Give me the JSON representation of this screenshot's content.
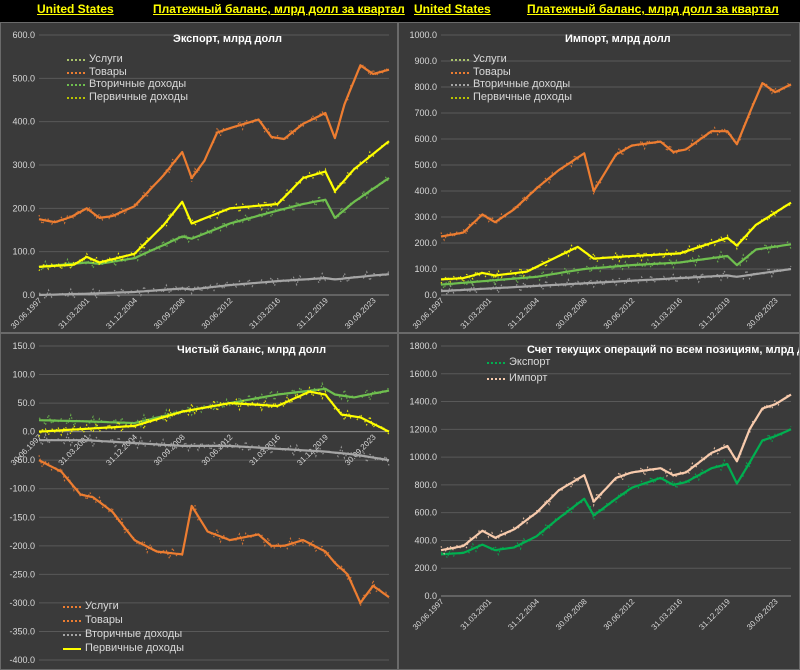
{
  "header": {
    "left_country": "United States",
    "left_title": "Платежный баланс, млрд долл за квартал",
    "right_country": "United States",
    "right_title": "Платежный баланс, млрд долл за квартал"
  },
  "chart_data": [
    {
      "type": "line",
      "title": "Экспорт, млрд долл",
      "ylim": [
        0,
        600
      ],
      "y_ticks": [
        "0.0",
        "100.0",
        "200.0",
        "300.0",
        "400.0",
        "500.0",
        "600.0"
      ],
      "x_ticks": [
        "30.06.1997",
        "31.03.2001",
        "31.12.2004",
        "30.09.2008",
        "30.06.2012",
        "31.03.2016",
        "31.12.2019",
        "30.09.2023"
      ],
      "x_range": [
        1997.25,
        2024.75
      ],
      "legend_position": "top-left",
      "grid": true,
      "series": [
        {
          "name": "Услуги",
          "color": "#a5a5a5",
          "x": [
            1997.25,
            2001,
            2004.75,
            2008.5,
            2009.25,
            2012.25,
            2016,
            2019.75,
            2020.5,
            2023.5,
            2024.75
          ],
          "values": [
            0,
            3,
            7,
            15,
            13,
            23,
            32,
            39,
            36,
            45,
            48
          ]
        },
        {
          "name": "Товары",
          "color": "#ed7d31",
          "x": [
            1997.25,
            1998.5,
            1999.75,
            2001,
            2002,
            2003,
            2004.75,
            2007,
            2008.5,
            2009.25,
            2010.25,
            2011.25,
            2012.25,
            2014.5,
            2015.5,
            2016.5,
            2018,
            2019.75,
            2020.5,
            2021.25,
            2022.5,
            2023.5,
            2024.75
          ],
          "values": [
            175,
            168,
            180,
            200,
            178,
            182,
            205,
            275,
            330,
            270,
            310,
            375,
            385,
            405,
            365,
            360,
            395,
            420,
            362,
            440,
            530,
            510,
            520
          ]
        },
        {
          "name": "Вторичные доходы",
          "color": "#6fbf4f",
          "x": [
            1997.25,
            2001,
            2002,
            2004.75,
            2008.5,
            2009.25,
            2012.25,
            2016,
            2018,
            2019.75,
            2020.5,
            2022,
            2024.75
          ],
          "values": [
            65,
            75,
            72,
            85,
            135,
            130,
            165,
            195,
            210,
            220,
            178,
            215,
            270
          ]
        },
        {
          "name": "Первичные доходы",
          "color": "#ffff00",
          "x": [
            1997.25,
            2000,
            2001,
            2002,
            2004.75,
            2007,
            2008.5,
            2009.25,
            2012.25,
            2016,
            2018,
            2019.75,
            2020.5,
            2022,
            2024.75
          ],
          "values": [
            65,
            70,
            88,
            75,
            95,
            160,
            215,
            165,
            200,
            210,
            270,
            285,
            240,
            290,
            355
          ]
        }
      ]
    },
    {
      "type": "line",
      "title": "Импорт, млрд долл",
      "ylim": [
        0,
        1000
      ],
      "y_ticks": [
        "0.0",
        "100.0",
        "200.0",
        "300.0",
        "400.0",
        "500.0",
        "600.0",
        "700.0",
        "800.0",
        "900.0",
        "1000.0"
      ],
      "x_ticks": [
        "30.06.1997",
        "31.03.2001",
        "31.12.2004",
        "30.09.2008",
        "30.06.2012",
        "31.03.2016",
        "31.12.2019",
        "30.09.2023"
      ],
      "x_range": [
        1997.25,
        2024.75
      ],
      "legend_position": "top-left",
      "grid": true,
      "series": [
        {
          "name": "Услуги",
          "color": "#a5a5a5",
          "x": [
            1997.25,
            2001,
            2004.75,
            2008.5,
            2012.25,
            2016,
            2019.75,
            2020.5,
            2024.75
          ],
          "values": [
            15,
            25,
            35,
            45,
            55,
            65,
            75,
            70,
            100
          ]
        },
        {
          "name": "Товары",
          "color": "#ed7d31",
          "x": [
            1997.25,
            1999,
            2000.5,
            2001.5,
            2003,
            2004.75,
            2006.5,
            2008.5,
            2009.25,
            2011,
            2012.25,
            2014.5,
            2015.5,
            2016.5,
            2018.5,
            2019.75,
            2020.5,
            2021.5,
            2022.5,
            2023.5,
            2024.75
          ],
          "values": [
            225,
            240,
            310,
            280,
            330,
            410,
            480,
            545,
            400,
            540,
            575,
            590,
            550,
            560,
            630,
            630,
            580,
            700,
            815,
            780,
            810
          ]
        },
        {
          "name": "Вторичные доходы",
          "color": "#6fbf4f",
          "x": [
            1997.25,
            2001,
            2004.75,
            2008.5,
            2012.25,
            2016,
            2019.75,
            2020.5,
            2022,
            2024.75
          ],
          "values": [
            40,
            55,
            70,
            100,
            115,
            125,
            150,
            115,
            175,
            195
          ]
        },
        {
          "name": "Первичные доходы",
          "color": "#ffff00",
          "x": [
            1997.25,
            1999,
            2000.5,
            2001.5,
            2004,
            2006.5,
            2008,
            2009.25,
            2012.25,
            2016,
            2018.5,
            2019.75,
            2020.5,
            2022,
            2024.75
          ],
          "values": [
            60,
            65,
            85,
            75,
            90,
            150,
            185,
            140,
            150,
            160,
            200,
            220,
            190,
            270,
            355
          ]
        }
      ]
    },
    {
      "type": "line",
      "title": "Чистый баланс, млрд долл",
      "ylim": [
        -400,
        150
      ],
      "y_ticks": [
        "-400.0",
        "-350.0",
        "-300.0",
        "-250.0",
        "-200.0",
        "-150.0",
        "-100.0",
        "-50.0",
        "0.0",
        "50.0",
        "100.0",
        "150.0"
      ],
      "x_ticks": [
        "30.06.1997",
        "31.03.2001",
        "31.12.2004",
        "30.09.2008",
        "30.06.2012",
        "31.03.2016",
        "31.12.2019",
        "30.09.2023"
      ],
      "x_range": [
        1997.25,
        2024.75
      ],
      "legend_position": "bottom-left",
      "grid": true,
      "series": [
        {
          "name": "Услуги",
          "color": "#6fbf4f",
          "x": [
            1997.25,
            2001,
            2004.75,
            2008.5,
            2012.25,
            2016,
            2019.75,
            2020.5,
            2022,
            2024.75
          ],
          "values": [
            20,
            18,
            15,
            35,
            50,
            65,
            75,
            65,
            60,
            72
          ]
        },
        {
          "name": "Товары",
          "color": "#ed7d31",
          "x": [
            1997.25,
            1999,
            2000.5,
            2001.5,
            2003,
            2004.75,
            2006.5,
            2008.5,
            2009.25,
            2010.5,
            2012.25,
            2014.5,
            2015.5,
            2016.5,
            2018,
            2019.75,
            2020.5,
            2021.5,
            2022.5,
            2023.5,
            2024.75
          ],
          "values": [
            -50,
            -70,
            -110,
            -115,
            -140,
            -190,
            -210,
            -215,
            -130,
            -175,
            -190,
            -180,
            -200,
            -200,
            -190,
            -210,
            -230,
            -250,
            -300,
            -270,
            -290
          ]
        },
        {
          "name": "Вторичные доходы",
          "color": "#a5a5a5",
          "x": [
            1997.25,
            2001,
            2004.75,
            2008.5,
            2012.25,
            2016,
            2019.75,
            2022,
            2024.75
          ],
          "values": [
            -15,
            -15,
            -20,
            -25,
            -25,
            -30,
            -35,
            -40,
            -50
          ]
        },
        {
          "name": "Первичные доходы",
          "color": "#ffff00",
          "x": [
            1997.25,
            2001,
            2004.75,
            2008.5,
            2012.25,
            2016,
            2018.5,
            2019.75,
            2021,
            2022.5,
            2024.75
          ],
          "values": [
            0,
            5,
            10,
            35,
            50,
            45,
            70,
            65,
            30,
            25,
            0
          ]
        }
      ]
    },
    {
      "type": "line",
      "title": "Счет текущих операций по всем позициям, млрд долл",
      "ylim": [
        0,
        1800
      ],
      "y_ticks": [
        "0.0",
        "200.0",
        "400.0",
        "600.0",
        "800.0",
        "1000.0",
        "1200.0",
        "1400.0",
        "1600.0",
        "1800.0"
      ],
      "x_ticks": [
        "30.06.1997",
        "31.03.2001",
        "31.12.2004",
        "30.09.2008",
        "30.06.2012",
        "31.03.2016",
        "31.12.2019",
        "30.09.2023"
      ],
      "x_range": [
        1997.25,
        2024.75
      ],
      "legend_position": "top-left",
      "grid": true,
      "series": [
        {
          "name": "Экспорт",
          "color": "#00b050",
          "x": [
            1997.25,
            1999,
            2000.5,
            2001.5,
            2003,
            2004.75,
            2006.5,
            2008.5,
            2009.25,
            2011,
            2012.25,
            2014.5,
            2015.5,
            2016.5,
            2018.5,
            2019.75,
            2020.5,
            2021.5,
            2022.5,
            2023.5,
            2024.75
          ],
          "values": [
            300,
            310,
            370,
            330,
            350,
            430,
            560,
            700,
            580,
            700,
            780,
            850,
            800,
            820,
            920,
            950,
            810,
            960,
            1120,
            1150,
            1200
          ]
        },
        {
          "name": "Импорт",
          "color": "#f8cbad",
          "x": [
            1997.25,
            1999,
            2000.5,
            2001.5,
            2003,
            2004.75,
            2006.5,
            2008.5,
            2009.25,
            2011,
            2012.25,
            2014.5,
            2015.5,
            2016.5,
            2018.5,
            2019.75,
            2020.5,
            2021.5,
            2022.5,
            2023.5,
            2024.75
          ],
          "values": [
            330,
            360,
            470,
            420,
            480,
            600,
            760,
            870,
            680,
            850,
            890,
            920,
            870,
            890,
            1030,
            1080,
            970,
            1200,
            1350,
            1380,
            1450
          ]
        }
      ]
    }
  ]
}
